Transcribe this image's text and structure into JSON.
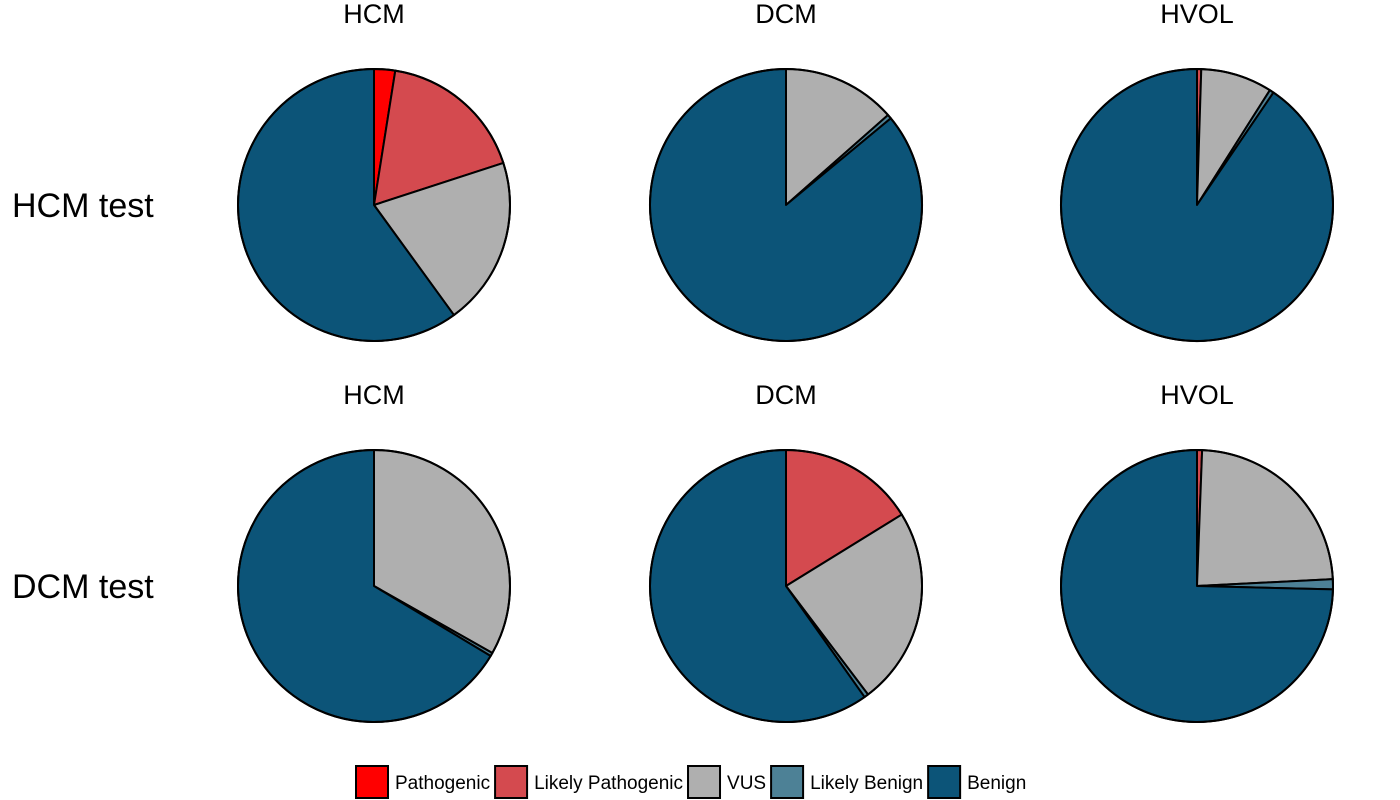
{
  "colors": {
    "Pathogenic": "#ff0000",
    "Likely Pathogenic": "#d44a4f",
    "VUS": "#afafaf",
    "Likely Benign": "#4d8196",
    "Benign": "#0c5478"
  },
  "legend": [
    "Pathogenic",
    "Likely Pathogenic",
    "VUS",
    "Likely Benign",
    "Benign"
  ],
  "chart_data": [
    {
      "type": "pie",
      "row": "HCM test",
      "title": "HCM",
      "slices": [
        {
          "label": "Pathogenic",
          "value": 2.5
        },
        {
          "label": "Likely Pathogenic",
          "value": 17.5
        },
        {
          "label": "VUS",
          "value": 20.0
        },
        {
          "label": "Likely Benign",
          "value": 0.0
        },
        {
          "label": "Benign",
          "value": 60.0
        }
      ]
    },
    {
      "type": "pie",
      "row": "HCM test",
      "title": "DCM",
      "slices": [
        {
          "label": "Pathogenic",
          "value": 0.0
        },
        {
          "label": "Likely Pathogenic",
          "value": 0.0
        },
        {
          "label": "VUS",
          "value": 13.5
        },
        {
          "label": "Likely Benign",
          "value": 0.5
        },
        {
          "label": "Benign",
          "value": 86.0
        }
      ]
    },
    {
      "type": "pie",
      "row": "HCM test",
      "title": "HVOL",
      "slices": [
        {
          "label": "Pathogenic",
          "value": 0.0
        },
        {
          "label": "Likely Pathogenic",
          "value": 0.5
        },
        {
          "label": "VUS",
          "value": 8.5
        },
        {
          "label": "Likely Benign",
          "value": 0.5
        },
        {
          "label": "Benign",
          "value": 90.5
        }
      ]
    },
    {
      "type": "pie",
      "row": "DCM test",
      "title": "HCM",
      "slices": [
        {
          "label": "Pathogenic",
          "value": 0.0
        },
        {
          "label": "Likely Pathogenic",
          "value": 0.0
        },
        {
          "label": "VUS",
          "value": 33.2
        },
        {
          "label": "Likely Benign",
          "value": 0.4
        },
        {
          "label": "Benign",
          "value": 66.4
        }
      ]
    },
    {
      "type": "pie",
      "row": "DCM test",
      "title": "DCM",
      "slices": [
        {
          "label": "Pathogenic",
          "value": 0.0
        },
        {
          "label": "Likely Pathogenic",
          "value": 16.2
        },
        {
          "label": "VUS",
          "value": 23.5
        },
        {
          "label": "Likely Benign",
          "value": 0.5
        },
        {
          "label": "Benign",
          "value": 59.8
        }
      ]
    },
    {
      "type": "pie",
      "row": "DCM test",
      "title": "HVOL",
      "slices": [
        {
          "label": "Pathogenic",
          "value": 0.0
        },
        {
          "label": "Likely Pathogenic",
          "value": 0.6
        },
        {
          "label": "VUS",
          "value": 23.6
        },
        {
          "label": "Likely Benign",
          "value": 1.2
        },
        {
          "label": "Benign",
          "value": 74.6
        }
      ]
    }
  ]
}
